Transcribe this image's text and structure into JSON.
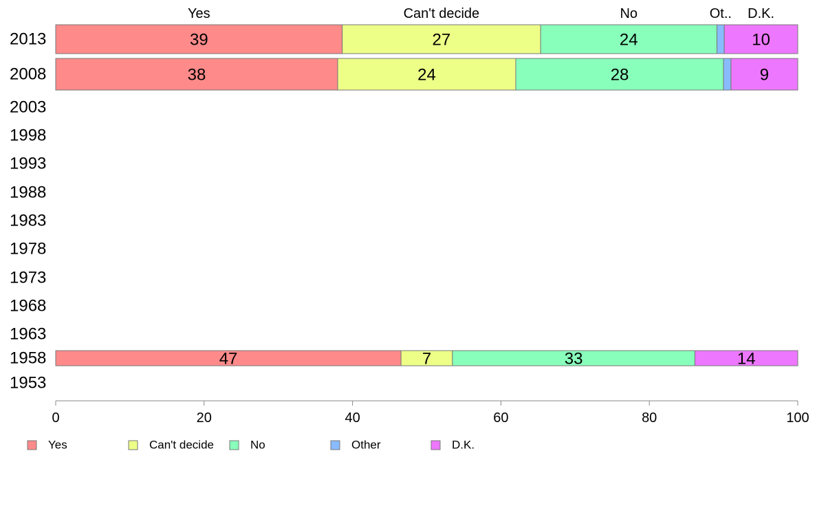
{
  "chart_data": {
    "type": "bar",
    "orientation": "horizontal",
    "stacked": true,
    "title": "",
    "xlabel": "",
    "ylabel": "",
    "xlim": [
      0,
      100
    ],
    "x_ticks": [
      0,
      20,
      40,
      60,
      80,
      100
    ],
    "categories": [
      "2013",
      "2008",
      "2003",
      "1998",
      "1993",
      "1988",
      "1983",
      "1978",
      "1973",
      "1968",
      "1963",
      "1958",
      "1953"
    ],
    "series": [
      {
        "name": "Yes",
        "color": "#ff8a8a",
        "values": [
          39,
          38,
          null,
          null,
          null,
          null,
          null,
          null,
          null,
          null,
          null,
          47,
          null
        ]
      },
      {
        "name": "Can't decide",
        "color": "#eeff88",
        "values": [
          27,
          24,
          null,
          null,
          null,
          null,
          null,
          null,
          null,
          null,
          null,
          7,
          null
        ]
      },
      {
        "name": "No",
        "color": "#88ffbb",
        "values": [
          24,
          28,
          null,
          null,
          null,
          null,
          null,
          null,
          null,
          null,
          null,
          33,
          null
        ]
      },
      {
        "name": "Other",
        "color": "#88bbff",
        "values": [
          1,
          1,
          null,
          null,
          null,
          null,
          null,
          null,
          null,
          null,
          null,
          0,
          null
        ]
      },
      {
        "name": "D.K.",
        "color": "#ee77ff",
        "values": [
          10,
          9,
          null,
          null,
          null,
          null,
          null,
          null,
          null,
          null,
          null,
          14,
          null
        ]
      }
    ],
    "top_labels": [
      "Yes",
      "Can't decide",
      "No",
      "Ot..",
      "D.K."
    ],
    "legend_position": "bottom",
    "grid": false
  }
}
